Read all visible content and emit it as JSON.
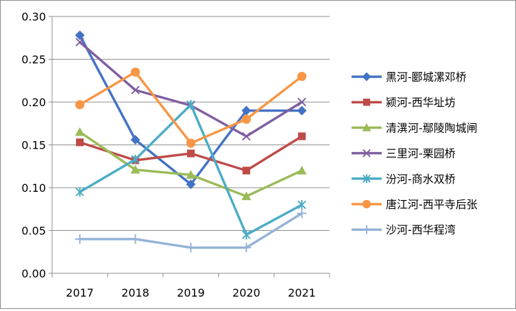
{
  "chart_data": {
    "type": "line",
    "categories": [
      "2017",
      "2018",
      "2019",
      "2020",
      "2021"
    ],
    "ylim": [
      0,
      0.3
    ],
    "yticks": [
      "0.00",
      "0.05",
      "0.10",
      "0.15",
      "0.20",
      "0.25",
      "0.30"
    ],
    "grid": true,
    "legend_position": "right",
    "series": [
      {
        "name": "黑河-郾城漯邓桥",
        "color": "#4472C4",
        "marker": "diamond",
        "values": [
          0.278,
          0.156,
          0.104,
          0.19,
          0.19
        ]
      },
      {
        "name": "颍河-西华址坊",
        "color": "#BE4B48",
        "marker": "square",
        "values": [
          0.153,
          0.132,
          0.14,
          0.12,
          0.16
        ]
      },
      {
        "name": "清潩河-鄢陵陶城闸",
        "color": "#9BBB59",
        "marker": "triangle",
        "values": [
          0.165,
          0.121,
          0.115,
          0.09,
          0.12
        ]
      },
      {
        "name": "三里河-栗园桥",
        "color": "#7F5FA0",
        "marker": "x",
        "values": [
          0.27,
          0.214,
          0.196,
          0.16,
          0.2
        ]
      },
      {
        "name": "汾河-商水双桥",
        "color": "#4BACC6",
        "marker": "star",
        "values": [
          0.095,
          0.133,
          0.197,
          0.045,
          0.08
        ]
      },
      {
        "name": "唐江河-西平寺后张",
        "color": "#F79646",
        "marker": "circle",
        "values": [
          0.197,
          0.235,
          0.152,
          0.18,
          0.23
        ]
      },
      {
        "name": "沙河-西华程湾",
        "color": "#95B3D7",
        "marker": "plus",
        "values": [
          0.04,
          0.04,
          0.03,
          0.03,
          0.07
        ]
      }
    ]
  }
}
